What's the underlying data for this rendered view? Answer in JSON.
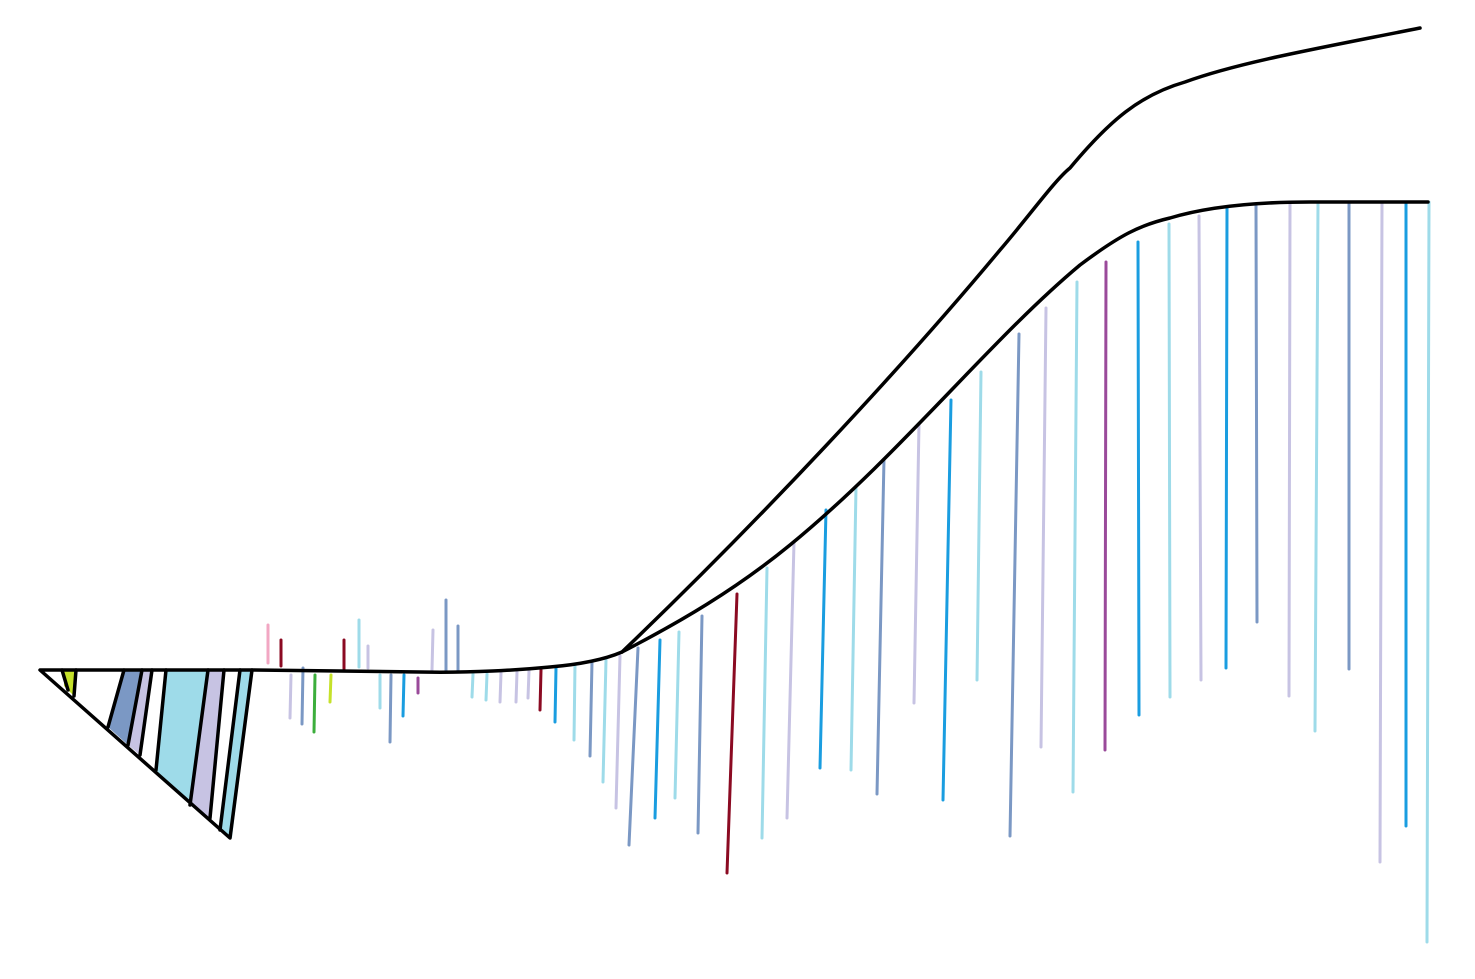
{
  "palette": {
    "outline": "#000000",
    "background": "#ffffff",
    "stroke_colors": [
      "#9edbe9",
      "#1a9de0",
      "#7b98c4",
      "#c7c3e3",
      "#8b0a22",
      "#9a4a9a",
      "#f2a7c3",
      "#c5e12a",
      "#3cae3c"
    ]
  },
  "elements": {
    "fan": "triangular-fan-of-colored-bands",
    "baseline": "baseline-curve",
    "upper_curve": "upper-curve",
    "strokes": "vertical-color-strokes"
  }
}
